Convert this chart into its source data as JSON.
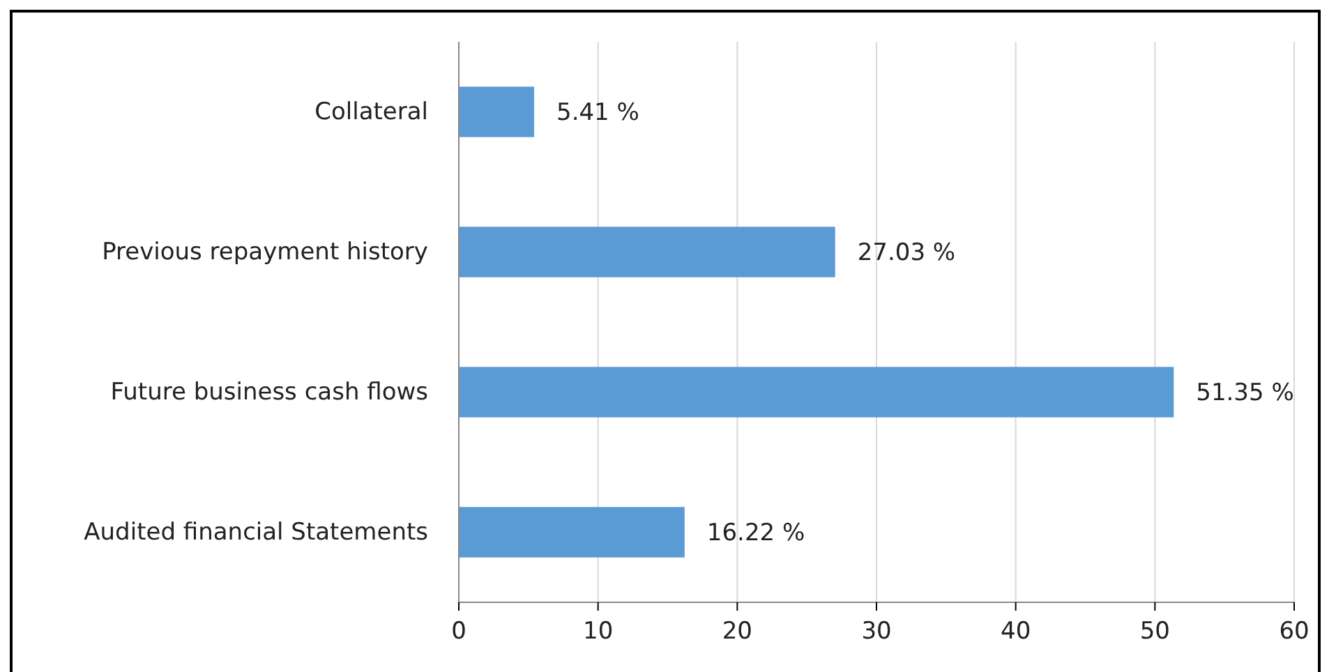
{
  "chart_data": {
    "type": "bar",
    "orientation": "horizontal",
    "categories": [
      "Collateral",
      "Previous repayment history",
      "Future business cash flows",
      "Audited financial Statements"
    ],
    "values": [
      5.41,
      27.03,
      51.35,
      16.22
    ],
    "value_labels": [
      "5.41 %",
      "27.03 %",
      "51.35 %",
      "16.22 %"
    ],
    "color": "#5b9bd5",
    "xlim": [
      0,
      60
    ],
    "xticks": [
      0,
      10,
      20,
      30,
      40,
      50,
      60
    ],
    "grid": "x"
  }
}
